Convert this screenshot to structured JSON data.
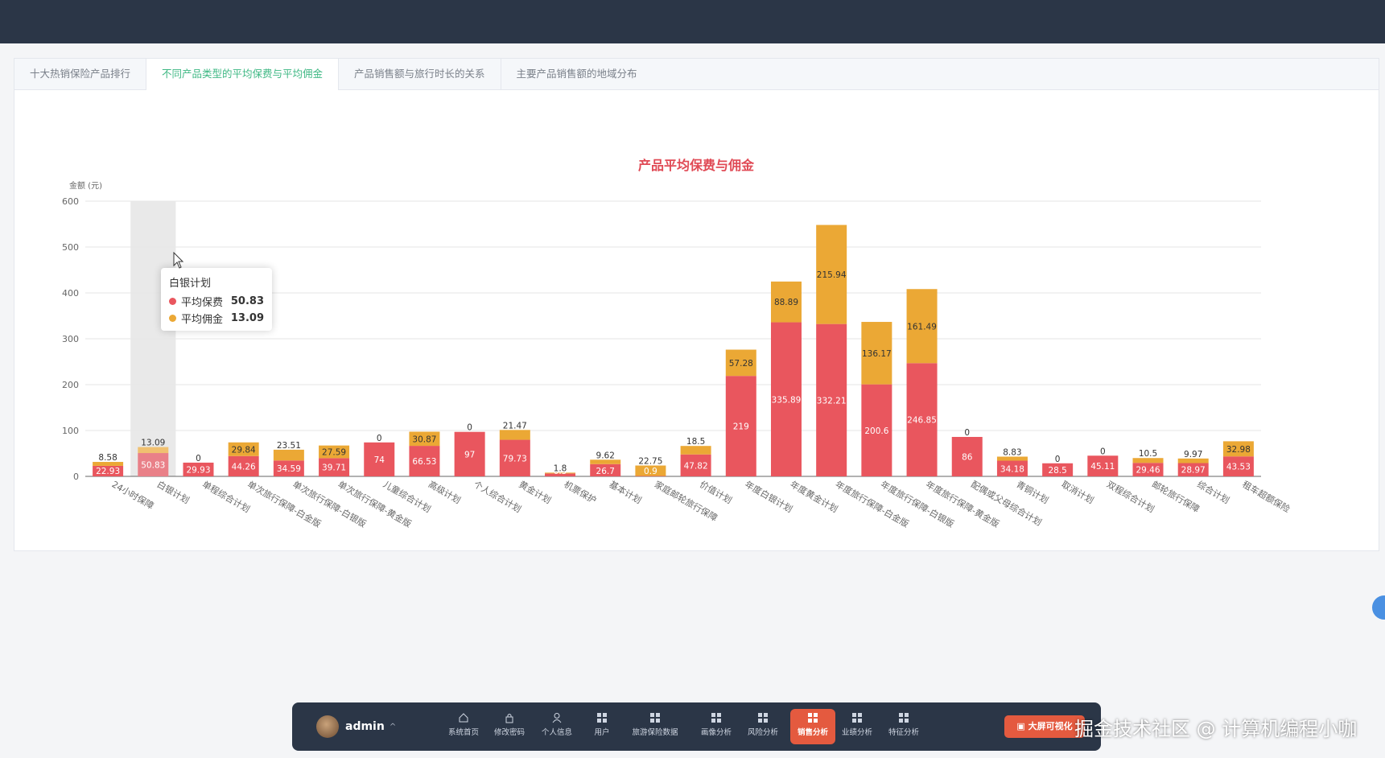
{
  "tabs": [
    "十大热销保险产品排行",
    "不同产品类型的平均保费与平均佣金",
    "产品销售额与旅行时长的关系",
    "主要产品销售额的地域分布"
  ],
  "active_tab": 1,
  "tooltip": {
    "title": "白银计划",
    "rows": [
      {
        "name": "平均保费",
        "value": "50.83"
      },
      {
        "name": "平均佣金",
        "value": "13.09"
      }
    ]
  },
  "chart_data": {
    "type": "bar",
    "title": "产品平均保费与佣金",
    "ylabel": "金额 (元)",
    "ylim": [
      0,
      600
    ],
    "yticks": [
      0,
      100,
      200,
      300,
      400,
      500,
      600
    ],
    "stacked": true,
    "highlighted_category": "白银计划",
    "categories": [
      "24小时保障",
      "白银计划",
      "单程综合计划",
      "单次旅行保障-白金版",
      "单次旅行保障-白银版",
      "单次旅行保障-黄金版",
      "儿童综合计划",
      "高级计划",
      "个人综合计划",
      "黄金计划",
      "机票保护",
      "基本计划",
      "家庭邮轮旅行保障",
      "价值计划",
      "年度白银计划",
      "年度黄金计划",
      "年度旅行保障-白金版",
      "年度旅行保障-白银版",
      "年度旅行保障-黄金版",
      "配偶或父母综合计划",
      "青铜计划",
      "取消计划",
      "双程综合计划",
      "邮轮旅行保障",
      "综合计划",
      "租车超额保险"
    ],
    "series": [
      {
        "name": "平均保费",
        "color": "#e9565e",
        "values": [
          22.93,
          50.83,
          29.93,
          44.26,
          34.59,
          39.71,
          74,
          66.53,
          97,
          79.73,
          6.3,
          26.7,
          0.9,
          47.82,
          219,
          335.89,
          332.21,
          200.6,
          246.85,
          86,
          34.18,
          28.5,
          45.11,
          29.46,
          28.97,
          43.53
        ]
      },
      {
        "name": "平均佣金",
        "color": "#eba835",
        "values": [
          8.58,
          13.09,
          0,
          29.84,
          23.51,
          27.59,
          0,
          30.87,
          0,
          21.47,
          1.8,
          9.62,
          22.75,
          18.5,
          57.28,
          88.89,
          215.94,
          136.17,
          161.49,
          0,
          8.83,
          0,
          0,
          10.5,
          9.97,
          32.98
        ]
      }
    ],
    "legend": [
      "平均保费",
      "平均佣金"
    ],
    "legend_position": "bottom-center",
    "grid": true
  },
  "dock": {
    "username": "admin",
    "items": [
      {
        "label": "系统首页",
        "icon": "home-icon"
      },
      {
        "label": "修改密码",
        "icon": "lock-icon"
      },
      {
        "label": "个人信息",
        "icon": "person-icon"
      },
      {
        "label": "用户",
        "icon": "grid-icon"
      },
      {
        "label": "旅游保险数据",
        "icon": "grid-icon"
      },
      {
        "label": "画像分析",
        "icon": "grid-icon"
      },
      {
        "label": "风险分析",
        "icon": "grid-icon"
      },
      {
        "label": "销售分析",
        "icon": "grid-icon"
      },
      {
        "label": "业绩分析",
        "icon": "grid-icon"
      },
      {
        "label": "特征分析",
        "icon": "grid-icon"
      }
    ],
    "active_index": 7,
    "big_screen_label": "大屏可视化"
  },
  "watermark": "掘金技术社区 @ 计算机编程小咖"
}
